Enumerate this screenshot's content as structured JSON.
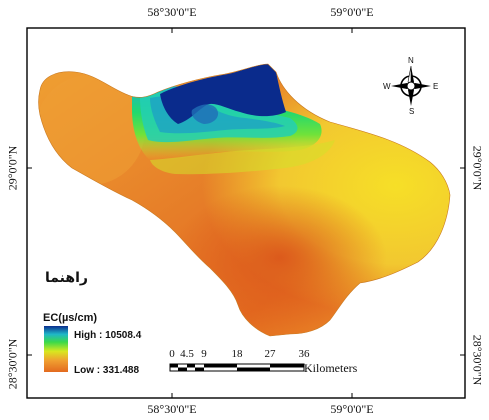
{
  "coordinates": {
    "top": [
      "58°30'0\"E",
      "59°0'0\"E"
    ],
    "bottom": [
      "58°30'0\"E",
      "59°0'0\"E"
    ],
    "left": [
      "29°0'0\"N",
      "28°30'0\"N"
    ],
    "right": [
      "29°0'0\"N",
      "28°30'0\"N"
    ]
  },
  "legend": {
    "heading": "راهنما",
    "title": "EC(µs/cm)",
    "high_label": "High : 10508.4",
    "low_label": "Low : 331.488",
    "high_value": 10508.4,
    "low_value": 331.488,
    "colors": [
      "#0b2d8f",
      "#1e74b8",
      "#1fc3c7",
      "#3ad94a",
      "#d8e81f",
      "#f2c42a",
      "#ec9b2c",
      "#e36a1f"
    ]
  },
  "scale_bar": {
    "ticks": [
      "0",
      "4.5",
      "9",
      "18",
      "27",
      "36"
    ],
    "unit": "Kilometers"
  },
  "north_arrow": {
    "icon": "compass-rose-icon",
    "labels": {
      "n": "N",
      "s": "S",
      "e": "E",
      "w": "W"
    }
  }
}
